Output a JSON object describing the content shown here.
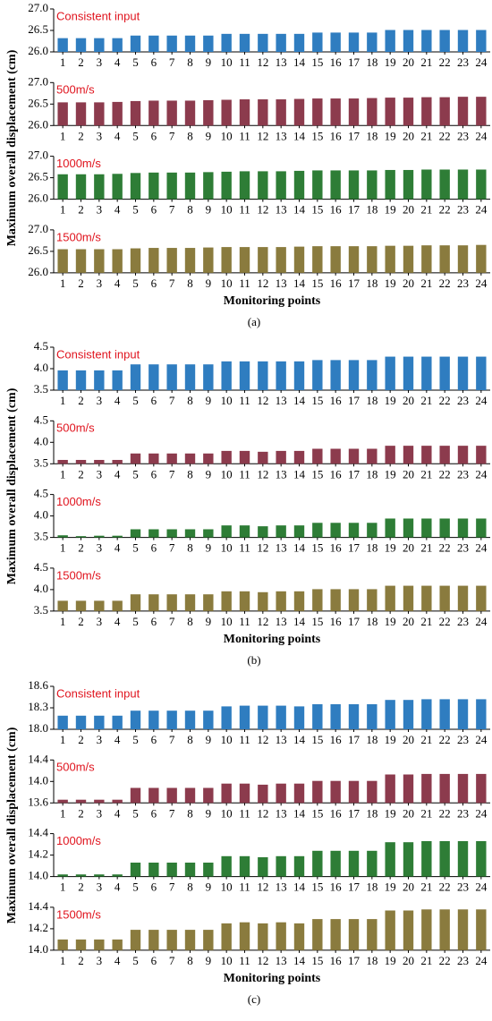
{
  "chart_data": [
    {
      "type": "bar",
      "ylabel": "Maximum overall displacement (cm)",
      "xlabel": "Monitoring points",
      "caption": "(a)",
      "panels": [
        {
          "title": "Consistent input",
          "color": "#2f7dc0",
          "ylim": [
            26.0,
            27.0
          ],
          "yticks": [
            {
              "value": 26.0,
              "label": "26.0"
            },
            26.5,
            {
              "value": 27.0,
              "label": "27.0"
            }
          ],
          "categories": [
            "1",
            "2",
            "3",
            "4",
            "5",
            "6",
            "7",
            "8",
            "9",
            "10",
            "11",
            "12",
            "13",
            "14",
            "15",
            "16",
            "17",
            "18",
            "19",
            "20",
            "21",
            "22",
            "23",
            "24"
          ],
          "values": [
            26.32,
            26.32,
            26.32,
            26.32,
            26.38,
            26.38,
            26.38,
            26.38,
            26.38,
            26.42,
            26.42,
            26.42,
            26.42,
            26.42,
            26.45,
            26.45,
            26.45,
            26.45,
            26.51,
            26.51,
            26.51,
            26.51,
            26.51,
            26.51
          ]
        },
        {
          "title": "500m/s",
          "color": "#8c3b4d",
          "ylim": [
            26.0,
            27.0
          ],
          "yticks": [
            {
              "value": 26.0,
              "label": "26.0"
            },
            26.5,
            {
              "value": 27.0,
              "label": "27.0"
            }
          ],
          "categories": [
            "1",
            "2",
            "3",
            "4",
            "5",
            "6",
            "7",
            "8",
            "9",
            "10",
            "11",
            "12",
            "13",
            "14",
            "15",
            "16",
            "17",
            "18",
            "19",
            "20",
            "21",
            "22",
            "23",
            "24"
          ],
          "values": [
            26.54,
            26.54,
            26.54,
            26.55,
            26.57,
            26.58,
            26.58,
            26.58,
            26.59,
            26.6,
            26.61,
            26.61,
            26.61,
            26.62,
            26.63,
            26.63,
            26.63,
            26.64,
            26.65,
            26.65,
            26.66,
            26.66,
            26.67,
            26.67
          ]
        },
        {
          "title": "1000m/s",
          "color": "#2e7d36",
          "ylim": [
            26.0,
            27.0
          ],
          "yticks": [
            {
              "value": 26.0,
              "label": "26.0"
            },
            26.5,
            {
              "value": 27.0,
              "label": "27.0"
            }
          ],
          "categories": [
            "1",
            "2",
            "3",
            "4",
            "5",
            "6",
            "7",
            "8",
            "9",
            "10",
            "11",
            "12",
            "13",
            "14",
            "15",
            "16",
            "17",
            "18",
            "19",
            "20",
            "21",
            "22",
            "23",
            "24"
          ],
          "values": [
            26.58,
            26.58,
            26.58,
            26.59,
            26.61,
            26.62,
            26.62,
            26.62,
            26.63,
            26.64,
            26.65,
            26.65,
            26.65,
            26.66,
            26.67,
            26.67,
            26.67,
            26.67,
            26.68,
            26.68,
            26.69,
            26.69,
            26.69,
            26.69
          ]
        },
        {
          "title": "1500m/s",
          "color": "#8a7b3e",
          "ylim": [
            26.0,
            27.0
          ],
          "yticks": [
            {
              "value": 26.0,
              "label": "26.0"
            },
            26.5,
            {
              "value": 27.0,
              "label": "27.0"
            }
          ],
          "categories": [
            "1",
            "2",
            "3",
            "4",
            "5",
            "6",
            "7",
            "8",
            "9",
            "10",
            "11",
            "12",
            "13",
            "14",
            "15",
            "16",
            "17",
            "18",
            "19",
            "20",
            "21",
            "22",
            "23",
            "24"
          ],
          "values": [
            26.55,
            26.55,
            26.55,
            26.55,
            26.57,
            26.58,
            26.58,
            26.58,
            26.59,
            26.6,
            26.6,
            26.6,
            26.6,
            26.61,
            26.62,
            26.62,
            26.62,
            26.62,
            26.63,
            26.63,
            26.64,
            26.64,
            26.64,
            26.65
          ]
        }
      ]
    },
    {
      "type": "bar",
      "ylabel": "Maximum overall displacement (cm)",
      "xlabel": "Monitoring points",
      "caption": "(b)",
      "panels": [
        {
          "title": "Consistent input",
          "color": "#2f7dc0",
          "ylim": [
            3.5,
            4.5
          ],
          "yticks": [
            3.5,
            {
              "value": 4.0,
              "label": "4.0"
            },
            4.5
          ],
          "categories": [
            "1",
            "2",
            "3",
            "4",
            "5",
            "6",
            "7",
            "8",
            "9",
            "10",
            "11",
            "12",
            "13",
            "14",
            "15",
            "16",
            "17",
            "18",
            "19",
            "20",
            "21",
            "22",
            "23",
            "24"
          ],
          "values": [
            3.96,
            3.96,
            3.96,
            3.96,
            4.1,
            4.1,
            4.1,
            4.1,
            4.1,
            4.17,
            4.17,
            4.17,
            4.17,
            4.17,
            4.2,
            4.2,
            4.2,
            4.2,
            4.28,
            4.28,
            4.28,
            4.28,
            4.28,
            4.28
          ]
        },
        {
          "title": "500m/s",
          "color": "#8c3b4d",
          "ylim": [
            3.5,
            4.5
          ],
          "yticks": [
            3.5,
            {
              "value": 4.0,
              "label": "4.0"
            },
            4.5
          ],
          "categories": [
            "1",
            "2",
            "3",
            "4",
            "5",
            "6",
            "7",
            "8",
            "9",
            "10",
            "11",
            "12",
            "13",
            "14",
            "15",
            "16",
            "17",
            "18",
            "19",
            "20",
            "21",
            "22",
            "23",
            "24"
          ],
          "values": [
            3.59,
            3.59,
            3.59,
            3.59,
            3.74,
            3.74,
            3.74,
            3.74,
            3.74,
            3.8,
            3.8,
            3.78,
            3.8,
            3.8,
            3.85,
            3.85,
            3.85,
            3.85,
            3.92,
            3.92,
            3.92,
            3.92,
            3.92,
            3.92
          ]
        },
        {
          "title": "1000m/s",
          "color": "#2e7d36",
          "ylim": [
            3.5,
            4.5
          ],
          "yticks": [
            3.5,
            {
              "value": 4.0,
              "label": "4.0"
            },
            4.5
          ],
          "categories": [
            "1",
            "2",
            "3",
            "4",
            "5",
            "6",
            "7",
            "8",
            "9",
            "10",
            "11",
            "12",
            "13",
            "14",
            "15",
            "16",
            "17",
            "18",
            "19",
            "20",
            "21",
            "22",
            "23",
            "24"
          ],
          "values": [
            3.55,
            3.53,
            3.54,
            3.54,
            3.69,
            3.69,
            3.69,
            3.69,
            3.69,
            3.78,
            3.78,
            3.76,
            3.78,
            3.78,
            3.84,
            3.84,
            3.84,
            3.84,
            3.94,
            3.94,
            3.94,
            3.94,
            3.94,
            3.94
          ]
        },
        {
          "title": "1500m/s",
          "color": "#8a7b3e",
          "ylim": [
            3.5,
            4.5
          ],
          "yticks": [
            3.5,
            {
              "value": 4.0,
              "label": "4.0"
            },
            4.5
          ],
          "categories": [
            "1",
            "2",
            "3",
            "4",
            "5",
            "6",
            "7",
            "8",
            "9",
            "10",
            "11",
            "12",
            "13",
            "14",
            "15",
            "16",
            "17",
            "18",
            "19",
            "20",
            "21",
            "22",
            "23",
            "24"
          ],
          "values": [
            3.74,
            3.74,
            3.74,
            3.74,
            3.89,
            3.89,
            3.89,
            3.89,
            3.89,
            3.96,
            3.96,
            3.94,
            3.96,
            3.96,
            4.01,
            4.01,
            4.01,
            4.01,
            4.09,
            4.09,
            4.09,
            4.09,
            4.09,
            4.09
          ]
        }
      ]
    },
    {
      "type": "bar",
      "ylabel": "Maximum overall displacement (cm)",
      "xlabel": "Monitoring points",
      "caption": "(c)",
      "panels": [
        {
          "title": "Consistent input",
          "color": "#2f7dc0",
          "ylim": [
            18.0,
            18.6
          ],
          "yticks": [
            {
              "value": 18.0,
              "label": "18.0"
            },
            18.3,
            18.6
          ],
          "categories": [
            "1",
            "2",
            "3",
            "4",
            "5",
            "6",
            "7",
            "8",
            "9",
            "10",
            "11",
            "12",
            "13",
            "14",
            "15",
            "16",
            "17",
            "18",
            "19",
            "20",
            "21",
            "22",
            "23",
            "24"
          ],
          "values": [
            18.19,
            18.19,
            18.19,
            18.19,
            18.26,
            18.26,
            18.26,
            18.26,
            18.26,
            18.32,
            18.33,
            18.33,
            18.33,
            18.32,
            18.35,
            18.35,
            18.35,
            18.35,
            18.41,
            18.41,
            18.42,
            18.42,
            18.42,
            18.42
          ]
        },
        {
          "title": "500m/s",
          "color": "#8c3b4d",
          "ylim": [
            13.6,
            14.4
          ],
          "yticks": [
            13.6,
            {
              "value": 14.0,
              "label": "14.0"
            },
            14.4
          ],
          "categories": [
            "1",
            "2",
            "3",
            "4",
            "5",
            "6",
            "7",
            "8",
            "9",
            "10",
            "11",
            "12",
            "13",
            "14",
            "15",
            "16",
            "17",
            "18",
            "19",
            "20",
            "21",
            "22",
            "23",
            "24"
          ],
          "values": [
            13.66,
            13.66,
            13.66,
            13.66,
            13.88,
            13.88,
            13.88,
            13.88,
            13.88,
            13.96,
            13.96,
            13.94,
            13.96,
            13.96,
            14.01,
            14.01,
            14.01,
            14.01,
            14.13,
            14.13,
            14.14,
            14.14,
            14.14,
            14.14
          ]
        },
        {
          "title": "1000m/s",
          "color": "#2e7d36",
          "ylim": [
            14.0,
            14.4
          ],
          "yticks": [
            {
              "value": 14.0,
              "label": "14.0"
            },
            14.2,
            14.4
          ],
          "categories": [
            "1",
            "2",
            "3",
            "4",
            "5",
            "6",
            "7",
            "8",
            "9",
            "10",
            "11",
            "12",
            "13",
            "14",
            "15",
            "16",
            "17",
            "18",
            "19",
            "20",
            "21",
            "22",
            "23",
            "24"
          ],
          "values": [
            14.02,
            14.02,
            14.02,
            14.02,
            14.13,
            14.13,
            14.13,
            14.13,
            14.13,
            14.19,
            14.19,
            14.18,
            14.19,
            14.19,
            14.24,
            14.24,
            14.24,
            14.24,
            14.32,
            14.32,
            14.33,
            14.33,
            14.33,
            14.33
          ]
        },
        {
          "title": "1500m/s",
          "color": "#8a7b3e",
          "ylim": [
            14.0,
            14.4
          ],
          "yticks": [
            {
              "value": 14.0,
              "label": "14.0"
            },
            14.2,
            14.4
          ],
          "categories": [
            "1",
            "2",
            "3",
            "4",
            "5",
            "6",
            "7",
            "8",
            "9",
            "10",
            "11",
            "12",
            "13",
            "14",
            "15",
            "16",
            "17",
            "18",
            "19",
            "20",
            "21",
            "22",
            "23",
            "24"
          ],
          "values": [
            14.1,
            14.1,
            14.1,
            14.1,
            14.19,
            14.19,
            14.19,
            14.19,
            14.19,
            14.25,
            14.26,
            14.25,
            14.26,
            14.25,
            14.29,
            14.29,
            14.29,
            14.29,
            14.37,
            14.37,
            14.38,
            14.38,
            14.38,
            14.38
          ]
        }
      ]
    }
  ]
}
